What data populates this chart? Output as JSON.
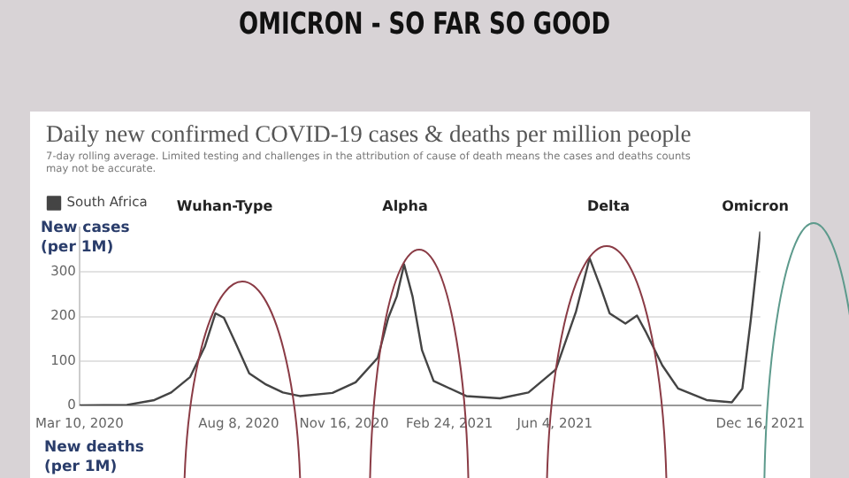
{
  "chart_data": {
    "type": "line",
    "title": "Daily new confirmed COVID-19 cases & deaths per million people",
    "subtitle": "7-day rolling average. Limited testing and challenges in the attribution of cause of death means the cases and deaths counts may not be accurate.",
    "ylabel": "New cases (per 1M)",
    "annotations": [
      "OMICRON - SO FAR SO GOOD",
      "Wuhan-Type",
      "Alpha",
      "Delta",
      "Omicron",
      "New deaths (per 1M)"
    ],
    "series": [
      {
        "name": "South Africa",
        "color": "#444444",
        "x": [
          "2020-03-10",
          "2020-04-24",
          "2020-05-20",
          "2020-06-05",
          "2020-06-23",
          "2020-07-07",
          "2020-07-17",
          "2020-07-25",
          "2020-08-05",
          "2020-08-18",
          "2020-09-03",
          "2020-09-19",
          "2020-10-05",
          "2020-11-05",
          "2020-11-27",
          "2020-12-18",
          "2020-12-28",
          "2021-01-05",
          "2021-01-12",
          "2021-01-20",
          "2021-01-29",
          "2021-02-09",
          "2021-03-12",
          "2021-04-13",
          "2021-05-10",
          "2021-06-05",
          "2021-06-24",
          "2021-07-07",
          "2021-07-18",
          "2021-07-26",
          "2021-08-10",
          "2021-08-21",
          "2021-08-29",
          "2021-09-14",
          "2021-09-29",
          "2021-10-26",
          "2021-11-19",
          "2021-11-29",
          "2021-12-07",
          "2021-12-16"
        ],
        "values": [
          0,
          1,
          12,
          29,
          64,
          133,
          207,
          197,
          141,
          72,
          47,
          29,
          21,
          28,
          52,
          107,
          197,
          245,
          317,
          245,
          124,
          55,
          21,
          16,
          29,
          81,
          210,
          331,
          262,
          207,
          184,
          202,
          167,
          90,
          38,
          12,
          7,
          38,
          193,
          391
        ]
      }
    ],
    "xlim": [
      "2020-03-10",
      "2021-12-16"
    ],
    "xticks": [
      {
        "value": "2020-03-10",
        "label": "Mar 10, 2020"
      },
      {
        "value": "2020-08-08",
        "label": "Aug 8, 2020"
      },
      {
        "value": "2020-11-16",
        "label": "Nov 16, 2020"
      },
      {
        "value": "2021-02-24",
        "label": "Feb 24, 2021"
      },
      {
        "value": "2021-06-04",
        "label": "Jun 4, 2021"
      },
      {
        "value": "2021-12-16",
        "label": "Dec 16, 2021"
      }
    ],
    "ylim": [
      0,
      400
    ],
    "yticks": [
      0,
      100,
      200,
      300
    ],
    "grid": "y",
    "legend": "top left",
    "marker": "none",
    "line_style": "solid"
  }
}
